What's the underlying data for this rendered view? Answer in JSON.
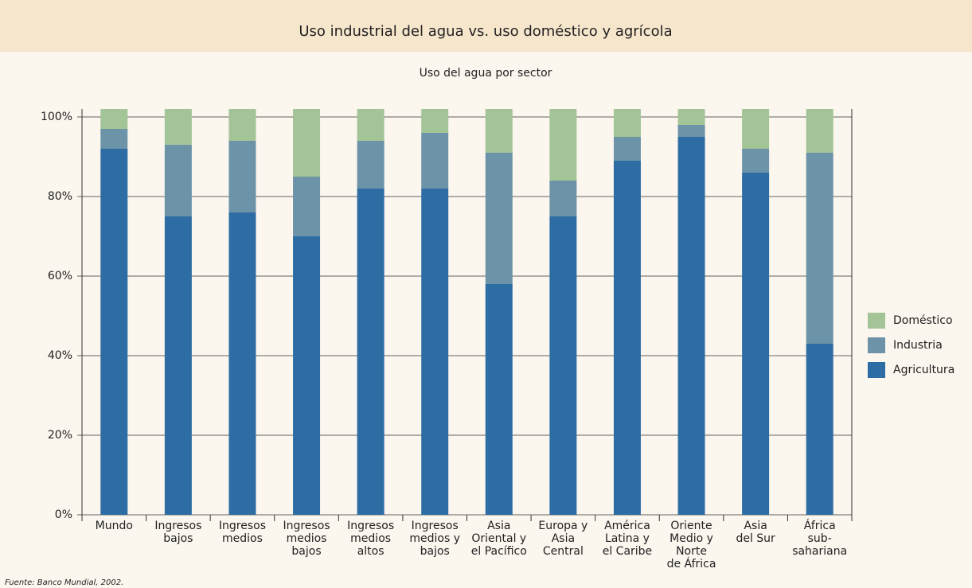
{
  "chart_data": {
    "type": "stacked_bar",
    "title": "Uso industrial del agua vs. uso doméstico y agrícola",
    "subtitle": "Uso del agua por sector",
    "source": "Fuente: Banco Mundial, 2002.",
    "categories": [
      "Mundo",
      "Ingresos\nbajos",
      "Ingresos\nmedios",
      "Ingresos\nmedios\nbajos",
      "Ingresos\nmedios\naltos",
      "Ingresos\nmedios y\nbajos",
      "Asia\nOriental y\nel Pacífico",
      "Europa y\nAsia\nCentral",
      "América\nLatina y\nel Caribe",
      "Oriente\nMedio y\nNorte\nde África",
      "Asia\ndel Sur",
      "África\nsub-\nsahariana"
    ],
    "series": [
      {
        "name": "Agricultura",
        "color": "#2e6da4",
        "values": [
          92,
          75,
          76,
          70,
          82,
          82,
          58,
          75,
          89,
          95,
          86,
          43
        ]
      },
      {
        "name": "Industria",
        "color": "#6d93a8",
        "values": [
          5,
          18,
          18,
          15,
          12,
          14,
          33,
          9,
          6,
          3,
          6,
          48
        ]
      },
      {
        "name": "Doméstico",
        "color": "#a3c497",
        "values": [
          5,
          9,
          8,
          17,
          8,
          6,
          11,
          18,
          7,
          4,
          10,
          11
        ]
      }
    ],
    "ylim": [
      0,
      102
    ],
    "yticks": [
      {
        "value": 0,
        "label": "0%"
      },
      {
        "value": 20,
        "label": "20%"
      },
      {
        "value": 40,
        "label": "40%"
      },
      {
        "value": 60,
        "label": "60%"
      },
      {
        "value": 80,
        "label": "80%"
      },
      {
        "value": 100,
        "label": "100%"
      }
    ],
    "grid": true,
    "legend": "right"
  }
}
